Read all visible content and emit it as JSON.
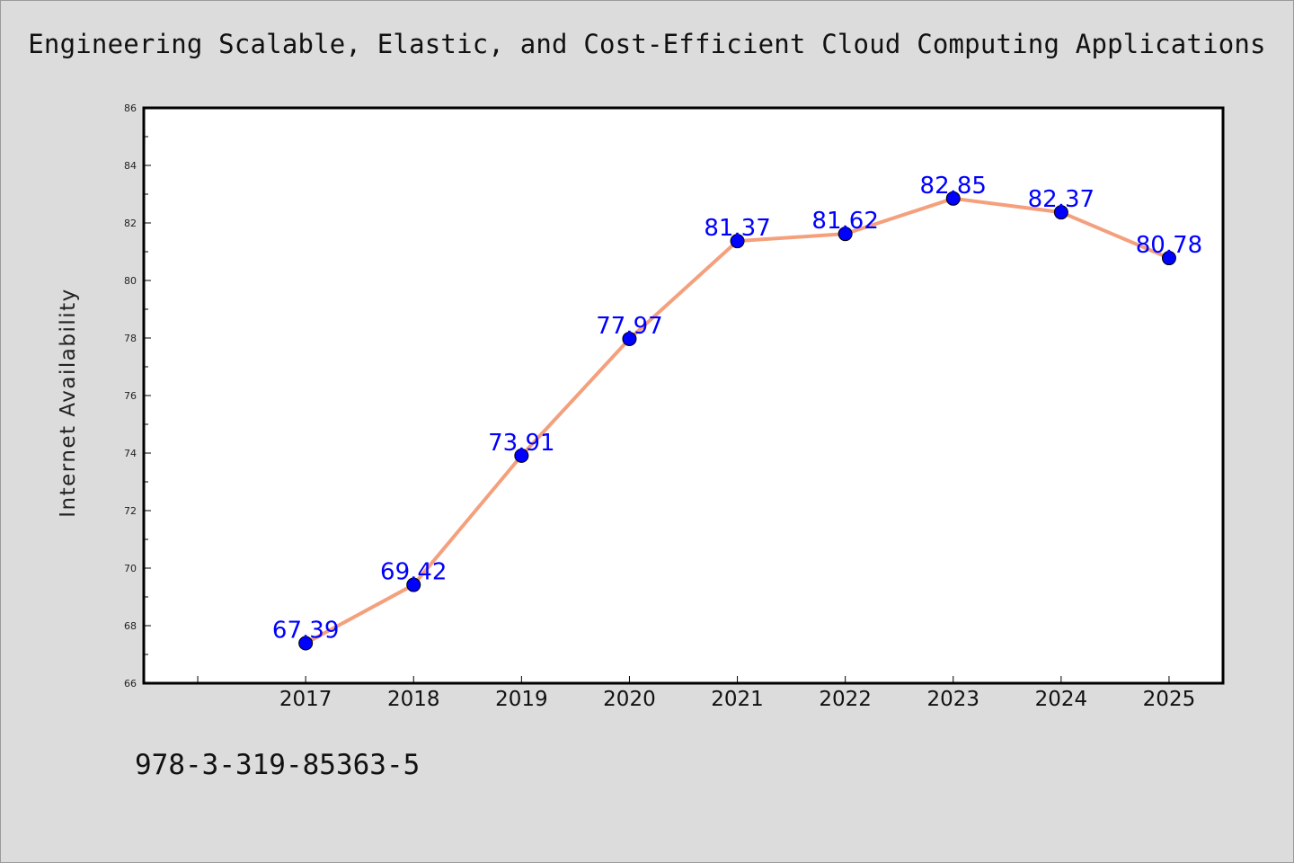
{
  "chart_data": {
    "type": "line",
    "title": "Engineering Scalable, Elastic, and Cost-Efficient Cloud Computing Applications",
    "xlabel": "",
    "ylabel": "Internet Availability",
    "categories": [
      "2017",
      "2018",
      "2019",
      "2020",
      "2021",
      "2022",
      "2023",
      "2024",
      "2025"
    ],
    "series": [
      {
        "values": [
          67.39,
          69.42,
          73.91,
          77.97,
          81.37,
          81.62,
          82.85,
          82.37,
          80.78
        ],
        "labels": [
          "67.39",
          "69.42",
          "73.91",
          "77.97",
          "81.37",
          "81.62",
          "82.85",
          "82.37",
          "80.78"
        ],
        "color": "#f4a07c",
        "marker_color": "#0000ff"
      }
    ],
    "ylim": [
      66,
      86
    ],
    "yticks": [
      "66",
      "68",
      "70",
      "72",
      "74",
      "76",
      "78",
      "80",
      "82",
      "84",
      "86"
    ],
    "grid": false,
    "legend": "none"
  },
  "footer": {
    "code": "978-3-319-85363-5"
  },
  "colors": {
    "background": "#dcdcdc",
    "plot_background": "#ffffff",
    "label_color": "#0000ff"
  }
}
